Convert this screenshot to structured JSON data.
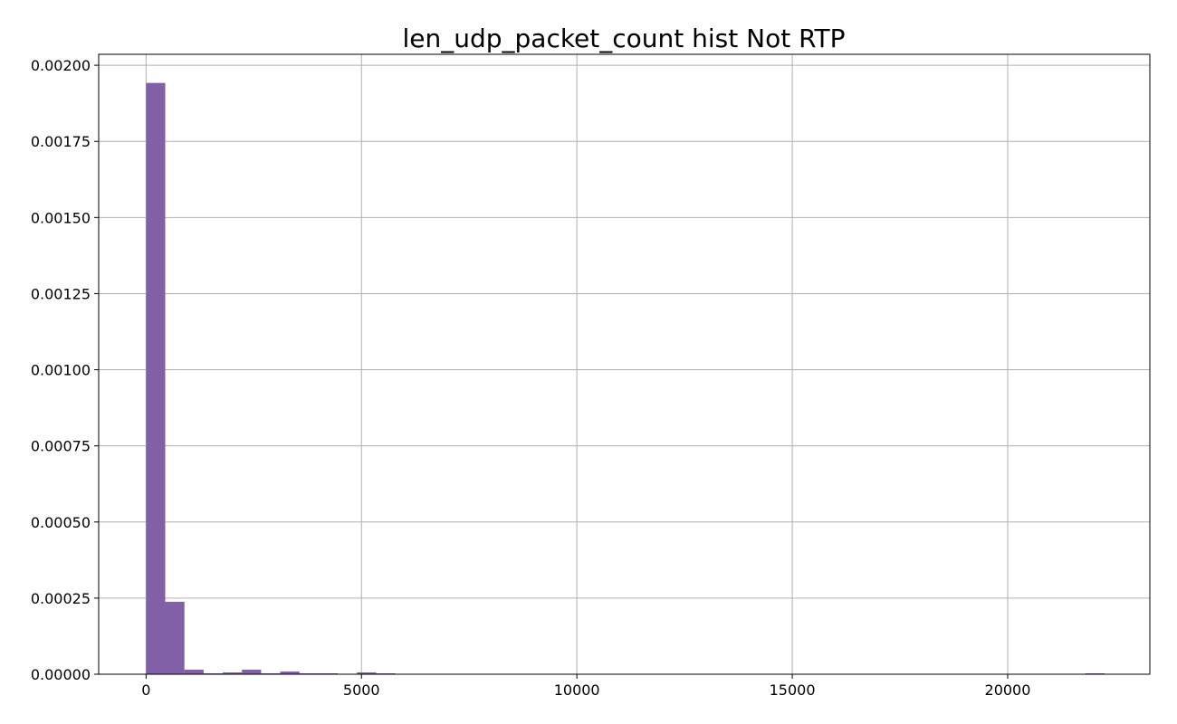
{
  "colors": {
    "bar": "#8260a8",
    "grid": "#b0b0b0",
    "axis": "#000000",
    "background": "#ffffff"
  },
  "chart_data": {
    "type": "bar",
    "title": "len_udp_packet_count hist Not RTP",
    "xlabel": "",
    "ylabel": "",
    "xlim": [
      -1100,
      23300
    ],
    "ylim": [
      0,
      0.002036
    ],
    "grid": true,
    "legend": "none",
    "xticks": [
      0,
      5000,
      10000,
      15000,
      20000
    ],
    "yticks": [
      0,
      0.00025,
      0.0005,
      0.00075,
      0.001,
      0.00125,
      0.0015,
      0.00175,
      0.002
    ],
    "xtick_labels": [
      "0",
      "5000",
      "10000",
      "15000",
      "20000"
    ],
    "ytick_labels": [
      "0.00000",
      "0.00025",
      "0.00050",
      "0.00075",
      "0.00100",
      "0.00125",
      "0.00150",
      "0.00175",
      "0.00200"
    ],
    "bins": [
      {
        "x0": 0,
        "x1": 445,
        "value": 0.001942
      },
      {
        "x0": 445,
        "x1": 890,
        "value": 0.000238
      },
      {
        "x0": 890,
        "x1": 1335,
        "value": 1.5e-05
      },
      {
        "x0": 1335,
        "x1": 1780,
        "value": 3e-06
      },
      {
        "x0": 1780,
        "x1": 2225,
        "value": 6e-06
      },
      {
        "x0": 2225,
        "x1": 2670,
        "value": 1.5e-05
      },
      {
        "x0": 2670,
        "x1": 3115,
        "value": 3e-06
      },
      {
        "x0": 3115,
        "x1": 3560,
        "value": 9e-06
      },
      {
        "x0": 3560,
        "x1": 4005,
        "value": 3e-06
      },
      {
        "x0": 4005,
        "x1": 4450,
        "value": 3e-06
      },
      {
        "x0": 4895,
        "x1": 5340,
        "value": 6e-06
      },
      {
        "x0": 5340,
        "x1": 5785,
        "value": 3e-06
      },
      {
        "x0": 21800,
        "x1": 22245,
        "value": 3e-06
      }
    ]
  }
}
